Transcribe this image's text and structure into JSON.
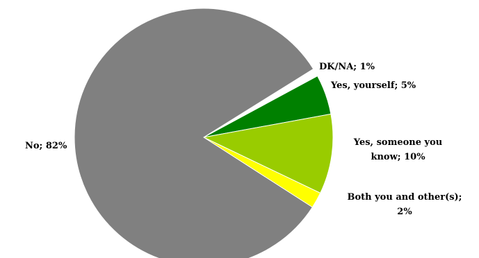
{
  "chart_data": {
    "type": "pie",
    "slices": [
      {
        "label": "DK/NA; 1%",
        "value": 1,
        "color": "#ffffff"
      },
      {
        "label": "Yes, yourself; 5%",
        "value": 5,
        "color": "#008000"
      },
      {
        "label": "Yes, someone you know; 10%",
        "value": 10,
        "color": "#99cc00"
      },
      {
        "label": "Both you and other(s); 2%",
        "value": 2,
        "color": "#ffff00"
      },
      {
        "label": "No; 82%",
        "value": 82,
        "color": "#808080"
      }
    ],
    "labels": {
      "dkna": "DK/NA; 1%",
      "yes_yourself": "Yes, yourself; 5%",
      "yes_someone_line1": "Yes, someone you",
      "yes_someone_line2": "know; 10%",
      "both_line1": "Both you and other(s);",
      "both_line2": "2%",
      "no": "No; 82%"
    }
  }
}
